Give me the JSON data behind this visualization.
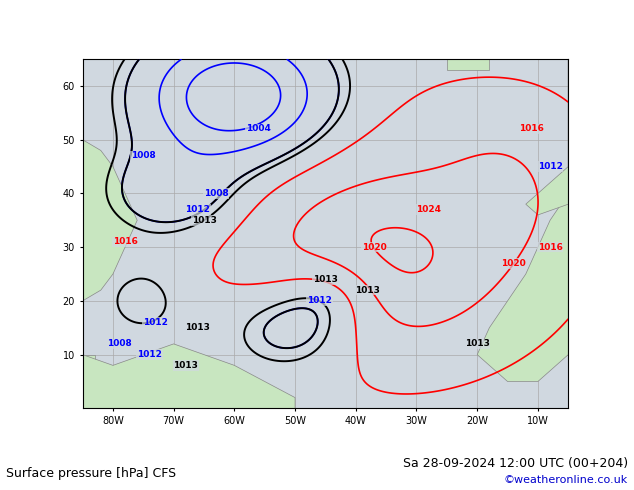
{
  "title_left": "Surface pressure [hPa] CFS",
  "title_right": "Sa 28-09-2024 12:00 UTC (00+204)",
  "credit": "©weatheronline.co.uk",
  "xlabel_ticks": [
    "80W",
    "70W",
    "60W",
    "50W",
    "40W",
    "30W",
    "20W",
    "10W"
  ],
  "bg_ocean": "#d0d8e0",
  "bg_land": "#c8e6c0",
  "grid_color": "#aaaaaa",
  "font_size_title": 9,
  "font_size_label": 8,
  "font_size_credit": 8
}
